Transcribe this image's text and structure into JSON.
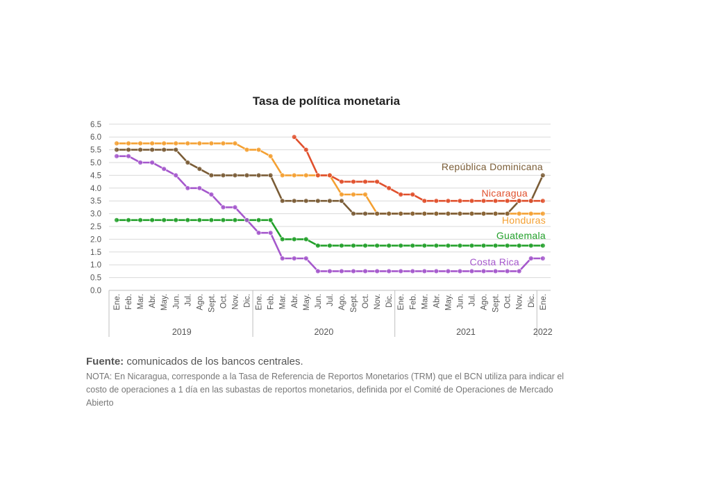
{
  "chart_data": {
    "type": "line",
    "title": "Tasa de política monetaria",
    "xlabel": "",
    "ylabel": "",
    "ylim": [
      0,
      6.5
    ],
    "y_ticks": [
      "0.0",
      "0.5",
      "1.0",
      "1.5",
      "2.0",
      "2.5",
      "3.0",
      "3.5",
      "4.0",
      "4.5",
      "5.0",
      "5.5",
      "6.0",
      "6.5"
    ],
    "grid": true,
    "categories": [
      "Ene.",
      "Feb.",
      "Mar.",
      "Abr.",
      "May.",
      "Jun.",
      "Jul.",
      "Ago.",
      "Sept.",
      "Oct.",
      "Nov.",
      "Dic.",
      "Ene.",
      "Feb.",
      "Mar.",
      "Abr.",
      "May.",
      "Jun.",
      "Jul.",
      "Ago.",
      "Sept.",
      "Oct.",
      "Nov.",
      "Dic.",
      "Ene.",
      "Feb.",
      "Mar.",
      "Abr.",
      "May.",
      "Jun.",
      "Jul.",
      "Ago.",
      "Sept.",
      "Oct.",
      "Nov.",
      "Dic.",
      "Ene."
    ],
    "years": [
      {
        "label": "2019",
        "start": 0,
        "end": 11
      },
      {
        "label": "2020",
        "start": 12,
        "end": 23
      },
      {
        "label": "2021",
        "start": 24,
        "end": 35
      },
      {
        "label": "2022",
        "start": 36,
        "end": 36
      }
    ],
    "series": [
      {
        "name": "Honduras",
        "color": "#F4A032",
        "values": [
          5.75,
          5.75,
          5.75,
          5.75,
          5.75,
          5.75,
          5.75,
          5.75,
          5.75,
          5.75,
          5.75,
          5.5,
          5.5,
          5.25,
          4.5,
          4.5,
          4.5,
          4.5,
          4.5,
          3.75,
          3.75,
          3.75,
          3.0,
          3.0,
          3.0,
          3.0,
          3.0,
          3.0,
          3.0,
          3.0,
          3.0,
          3.0,
          3.0,
          3.0,
          3.0,
          3.0,
          3.0
        ]
      },
      {
        "name": "República Dominicana",
        "color": "#7A5C36",
        "values": [
          5.5,
          5.5,
          5.5,
          5.5,
          5.5,
          5.5,
          5.0,
          4.75,
          4.5,
          4.5,
          4.5,
          4.5,
          4.5,
          4.5,
          3.5,
          3.5,
          3.5,
          3.5,
          3.5,
          3.5,
          3.0,
          3.0,
          3.0,
          3.0,
          3.0,
          3.0,
          3.0,
          3.0,
          3.0,
          3.0,
          3.0,
          3.0,
          3.0,
          3.0,
          3.5,
          3.5,
          4.5
        ]
      },
      {
        "name": "Nicaragua",
        "color": "#E0502D",
        "values": [
          null,
          null,
          null,
          null,
          null,
          null,
          null,
          null,
          null,
          null,
          null,
          null,
          null,
          null,
          null,
          6.0,
          5.5,
          4.5,
          4.5,
          4.25,
          4.25,
          4.25,
          4.25,
          4.0,
          3.75,
          3.75,
          3.5,
          3.5,
          3.5,
          3.5,
          3.5,
          3.5,
          3.5,
          3.5,
          3.5,
          3.5,
          3.5
        ]
      },
      {
        "name": "Guatemala",
        "color": "#22A02A",
        "values": [
          2.75,
          2.75,
          2.75,
          2.75,
          2.75,
          2.75,
          2.75,
          2.75,
          2.75,
          2.75,
          2.75,
          2.75,
          2.75,
          2.75,
          2.0,
          2.0,
          2.0,
          1.75,
          1.75,
          1.75,
          1.75,
          1.75,
          1.75,
          1.75,
          1.75,
          1.75,
          1.75,
          1.75,
          1.75,
          1.75,
          1.75,
          1.75,
          1.75,
          1.75,
          1.75,
          1.75,
          1.75
        ]
      },
      {
        "name": "Costa Rica",
        "color": "#A558CC",
        "values": [
          5.25,
          5.25,
          5.0,
          5.0,
          4.75,
          4.5,
          4.0,
          4.0,
          3.75,
          3.25,
          3.25,
          2.75,
          2.25,
          2.25,
          1.25,
          1.25,
          1.25,
          0.75,
          0.75,
          0.75,
          0.75,
          0.75,
          0.75,
          0.75,
          0.75,
          0.75,
          0.75,
          0.75,
          0.75,
          0.75,
          0.75,
          0.75,
          0.75,
          0.75,
          0.75,
          1.25,
          1.25
        ]
      }
    ],
    "annotations": [
      {
        "text": "República Dominicana",
        "series": "República Dominicana"
      },
      {
        "text": "Nicaragua",
        "series": "Nicaragua"
      },
      {
        "text": "Honduras",
        "series": "Honduras"
      },
      {
        "text": "Guatemala",
        "series": "Guatemala"
      },
      {
        "text": "Costa Rica",
        "series": "Costa Rica"
      }
    ]
  },
  "footer": {
    "source_label": "Fuente:",
    "source_text": " comunicados de los bancos centrales.",
    "note": "NOTA: En Nicaragua, corresponde a la Tasa de Referencia de Reportos Monetarios (TRM) que el BCN utiliza para indicar el costo de operaciones a 1 día en las subastas de reportos monetarios, definida por el Comité de Operaciones de Mercado Abierto"
  }
}
